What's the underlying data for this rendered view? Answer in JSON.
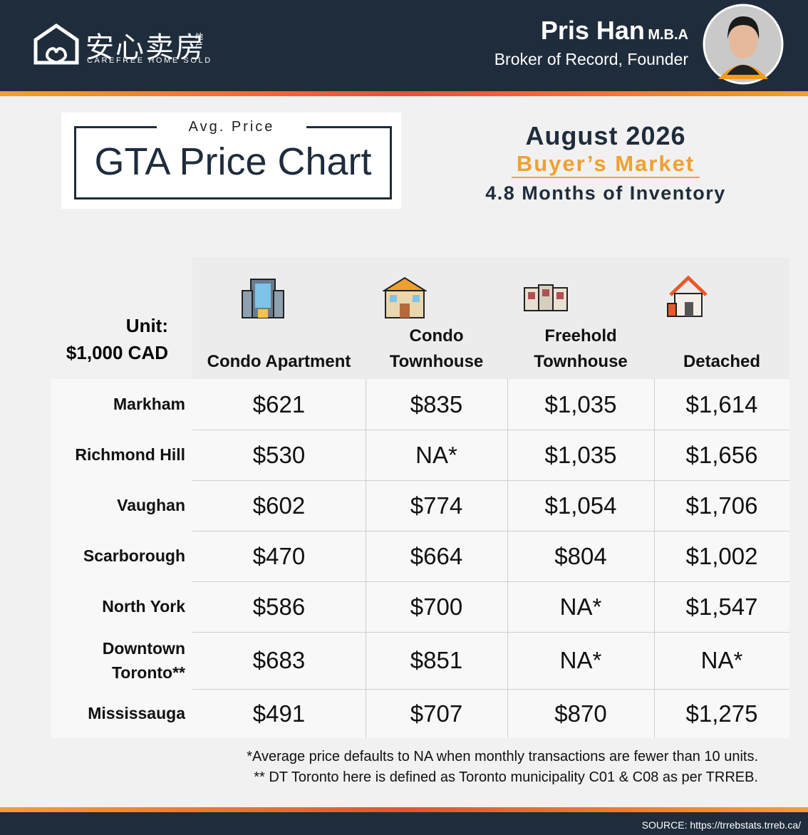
{
  "header": {
    "logo_text": "安心卖房",
    "logo_sub": "地产",
    "logo_tagline": "CAREFREE HOME SOLD",
    "name": "Pris Han",
    "credential": "M.B.A",
    "role": "Broker of Record, Founder"
  },
  "title_box": {
    "label": "Avg. Price",
    "title": "GTA Price Chart"
  },
  "summary": {
    "period": "August 2026",
    "market": "Buyer’s Market",
    "inventory": "4.8 Months of Inventory"
  },
  "table": {
    "unit": [
      "Unit:",
      "$1,000 CAD"
    ],
    "columns": [
      "Condo Apartment",
      "Condo Townhouse",
      "Freehold Townhouse",
      "Detached"
    ],
    "rows": [
      {
        "area": "Markham",
        "values": [
          "$621",
          "$835",
          "$1,035",
          "$1,614"
        ]
      },
      {
        "area": "Richmond Hill",
        "values": [
          "$530",
          "NA*",
          "$1,035",
          "$1,656"
        ]
      },
      {
        "area": "Vaughan",
        "values": [
          "$602",
          "$774",
          "$1,054",
          "$1,706"
        ]
      },
      {
        "area": "Scarborough",
        "values": [
          "$470",
          "$664",
          "$804",
          "$1,002"
        ]
      },
      {
        "area": "North York",
        "values": [
          "$586",
          "$700",
          "NA*",
          "$1,547"
        ]
      },
      {
        "area": "Downtown Toronto**",
        "values": [
          "$683",
          "$851",
          "NA*",
          "NA*"
        ]
      },
      {
        "area": "Mississauga",
        "values": [
          "$491",
          "$707",
          "$870",
          "$1,275"
        ]
      }
    ]
  },
  "footnotes": [
    "*Average price defaults to NA when monthly transactions are fewer than 10 units.",
    "** DT Toronto here is defined as Toronto municipality C01 & C08 as per TRREB."
  ],
  "source": "SOURCE: https://trrebstats.trreb.ca/"
}
